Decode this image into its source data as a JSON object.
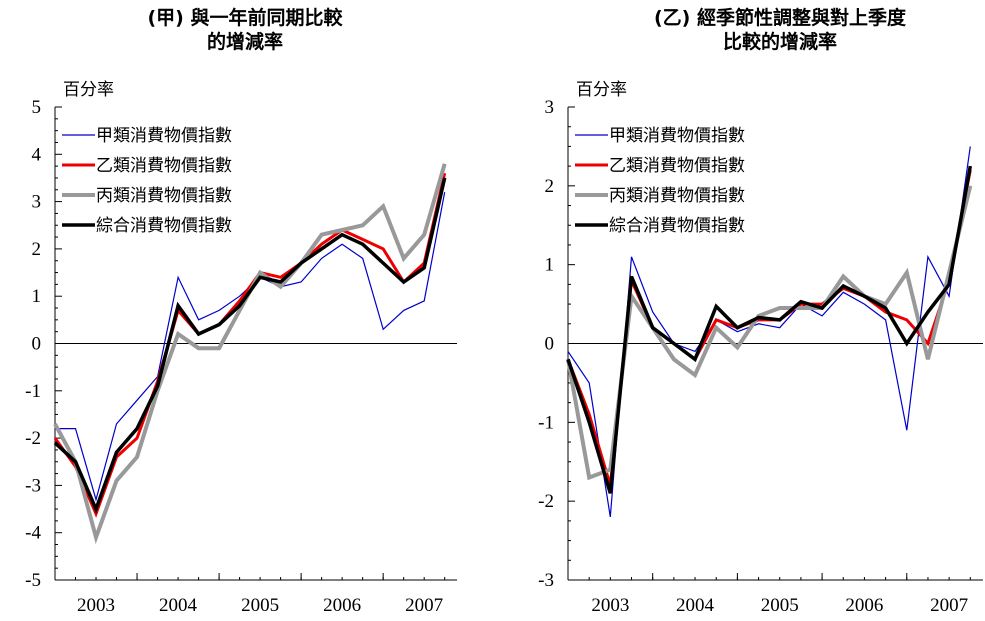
{
  "chart_data": [
    {
      "type": "line",
      "title_line1": "(甲) 與一年前同期比較",
      "title_line2": "的增減率",
      "ylabel": "百分率",
      "ylim": [
        -5,
        5
      ],
      "yticks": [
        "5",
        "4",
        "3",
        "2",
        "1",
        "0",
        "-1",
        "-2",
        "-3",
        "-4",
        "-5"
      ],
      "xlim": [
        2002.5,
        2007.4
      ],
      "x_tick_labels": [
        "2003",
        "2004",
        "2005",
        "2006",
        "2007"
      ],
      "x": [
        2002.5,
        2002.75,
        2003.0,
        2003.25,
        2003.5,
        2003.75,
        2004.0,
        2004.25,
        2004.5,
        2004.75,
        2005.0,
        2005.25,
        2005.5,
        2005.75,
        2006.0,
        2006.25,
        2006.5,
        2006.75,
        2007.0,
        2007.25
      ],
      "grid": false,
      "legend_position": "top-left",
      "series": [
        {
          "name": "甲類消費物價指數",
          "color": "#0000cc",
          "width": 1.2,
          "values": [
            -1.8,
            -1.8,
            -3.3,
            -1.7,
            -1.2,
            -0.7,
            1.4,
            0.5,
            0.7,
            1.0,
            1.4,
            1.2,
            1.3,
            1.8,
            2.1,
            1.8,
            0.3,
            0.7,
            0.9,
            3.2
          ]
        },
        {
          "name": "乙類消費物價指數",
          "color": "#ee0000",
          "width": 3,
          "values": [
            -2.0,
            -2.6,
            -3.6,
            -2.4,
            -2.0,
            -0.8,
            0.7,
            0.2,
            0.4,
            0.9,
            1.5,
            1.4,
            1.7,
            2.1,
            2.4,
            2.2,
            2.0,
            1.3,
            1.7,
            3.6
          ]
        },
        {
          "name": "丙類消費物價指數",
          "color": "#999999",
          "width": 4,
          "values": [
            -1.7,
            -2.5,
            -4.1,
            -2.9,
            -2.4,
            -1.0,
            0.2,
            -0.1,
            -0.1,
            0.7,
            1.5,
            1.2,
            1.7,
            2.3,
            2.4,
            2.5,
            2.9,
            1.8,
            2.3,
            3.8
          ]
        },
        {
          "name": "綜合消費物價指數",
          "color": "#000000",
          "width": 3.5,
          "values": [
            -2.1,
            -2.5,
            -3.5,
            -2.3,
            -1.8,
            -0.9,
            0.8,
            0.2,
            0.4,
            0.8,
            1.4,
            1.3,
            1.7,
            2.0,
            2.3,
            2.1,
            1.7,
            1.3,
            1.6,
            3.5
          ]
        }
      ]
    },
    {
      "type": "line",
      "title_line1": "(乙) 經季節性調整與對上季度",
      "title_line2": "比較的增減率",
      "ylabel": "百分率",
      "ylim": [
        -3,
        3
      ],
      "yticks": [
        "3",
        "2",
        "1",
        "0",
        "-1",
        "-2",
        "-3"
      ],
      "xlim": [
        2002.5,
        2007.4
      ],
      "x_tick_labels": [
        "2003",
        "2004",
        "2005",
        "2006",
        "2007"
      ],
      "x": [
        2002.5,
        2002.75,
        2003.0,
        2003.25,
        2003.5,
        2003.75,
        2004.0,
        2004.25,
        2004.5,
        2004.75,
        2005.0,
        2005.25,
        2005.5,
        2005.75,
        2006.0,
        2006.25,
        2006.5,
        2006.75,
        2007.0,
        2007.25
      ],
      "grid": false,
      "legend_position": "top-left",
      "series": [
        {
          "name": "甲類消費物價指數",
          "color": "#0000cc",
          "width": 1.2,
          "values": [
            -0.1,
            -0.5,
            -2.2,
            1.1,
            0.4,
            0.0,
            -0.1,
            0.3,
            0.15,
            0.25,
            0.2,
            0.5,
            0.35,
            0.65,
            0.5,
            0.3,
            -1.1,
            1.1,
            0.6,
            2.5
          ]
        },
        {
          "name": "乙類消費物價指數",
          "color": "#ee0000",
          "width": 3,
          "values": [
            -0.2,
            -0.9,
            -1.8,
            0.8,
            0.2,
            0.0,
            -0.2,
            0.3,
            0.2,
            0.3,
            0.3,
            0.5,
            0.5,
            0.7,
            0.6,
            0.4,
            0.3,
            0.0,
            0.8,
            2.2
          ]
        },
        {
          "name": "丙類消費物價指數",
          "color": "#999999",
          "width": 4,
          "values": [
            -0.2,
            -1.7,
            -1.6,
            0.6,
            0.2,
            -0.2,
            -0.4,
            0.2,
            -0.05,
            0.35,
            0.45,
            0.45,
            0.45,
            0.85,
            0.6,
            0.5,
            0.9,
            -0.2,
            0.9,
            2.0
          ]
        },
        {
          "name": "綜合消費物價指數",
          "color": "#000000",
          "width": 3.5,
          "values": [
            -0.2,
            -1.0,
            -1.9,
            0.85,
            0.2,
            0.0,
            -0.2,
            0.47,
            0.2,
            0.33,
            0.3,
            0.53,
            0.45,
            0.73,
            0.6,
            0.45,
            0.0,
            0.4,
            0.75,
            2.25
          ]
        }
      ]
    }
  ]
}
